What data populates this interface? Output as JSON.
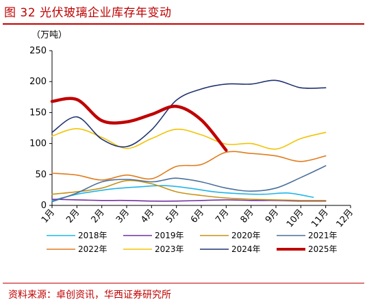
{
  "figure_title": "图 32 光伏玻璃企业库存年变动",
  "source_note": "资料来源：卓创资讯，华西证券研究所",
  "chart_data": {
    "type": "line",
    "title": "",
    "unit_label": "（万吨）",
    "ylim": [
      0,
      250
    ],
    "y_ticks": [
      "0",
      "50",
      "100",
      "150",
      "200",
      "250"
    ],
    "categories": [
      "1月",
      "2月",
      "2月",
      "3月",
      "4月",
      "5月",
      "6月",
      "7月",
      "8月",
      "9月",
      "10月",
      "11月",
      "12月"
    ],
    "grid": false,
    "legend_position": "bottom",
    "series": [
      {
        "name": "2018年",
        "color": "#1fb5e8",
        "width": 1.6,
        "points": [
          [
            1,
            8
          ],
          [
            2,
            18
          ],
          [
            2.6,
            22
          ],
          [
            3.5,
            27
          ],
          [
            4.5,
            30
          ],
          [
            5.5,
            32
          ],
          [
            6.5,
            28
          ],
          [
            7.5,
            22
          ],
          [
            8.5,
            19
          ],
          [
            9.5,
            18
          ],
          [
            10.5,
            20
          ],
          [
            11.5,
            13
          ]
        ]
      },
      {
        "name": "2019年",
        "color": "#7030a0",
        "width": 1.6,
        "points": [
          [
            1,
            10
          ],
          [
            2,
            9
          ],
          [
            3,
            8
          ],
          [
            4,
            8
          ],
          [
            5,
            7
          ],
          [
            6,
            7
          ],
          [
            7,
            8
          ],
          [
            8,
            9
          ],
          [
            9,
            8
          ],
          [
            10,
            8
          ],
          [
            11,
            7
          ],
          [
            12,
            7
          ]
        ]
      },
      {
        "name": "2020年",
        "color": "#c69214",
        "width": 1.6,
        "points": [
          [
            1,
            18
          ],
          [
            2,
            22
          ],
          [
            3,
            28
          ],
          [
            4,
            40
          ],
          [
            5,
            35
          ],
          [
            6,
            22
          ],
          [
            7,
            16
          ],
          [
            8,
            12
          ],
          [
            9,
            10
          ],
          [
            10,
            9
          ],
          [
            11,
            8
          ],
          [
            12,
            8
          ]
        ]
      },
      {
        "name": "2021年",
        "color": "#4a6f9c",
        "width": 1.6,
        "points": [
          [
            1,
            6
          ],
          [
            2,
            20
          ],
          [
            3,
            38
          ],
          [
            4,
            42
          ],
          [
            5,
            38
          ],
          [
            5.5,
            41
          ],
          [
            6,
            44
          ],
          [
            7,
            38
          ],
          [
            8,
            28
          ],
          [
            9,
            23
          ],
          [
            10,
            28
          ],
          [
            11,
            45
          ],
          [
            12,
            64
          ]
        ]
      },
      {
        "name": "2022年",
        "color": "#e07b1c",
        "width": 1.6,
        "points": [
          [
            1,
            52
          ],
          [
            2,
            49
          ],
          [
            3,
            41
          ],
          [
            4,
            49
          ],
          [
            5,
            43
          ],
          [
            6,
            63
          ],
          [
            7,
            66
          ],
          [
            8,
            86
          ],
          [
            9,
            84
          ],
          [
            10,
            80
          ],
          [
            11,
            71
          ],
          [
            12,
            80
          ]
        ]
      },
      {
        "name": "2023年",
        "color": "#f2c300",
        "width": 1.6,
        "points": [
          [
            1,
            112
          ],
          [
            2,
            124
          ],
          [
            3,
            110
          ],
          [
            4,
            92
          ],
          [
            5,
            108
          ],
          [
            6,
            123
          ],
          [
            7,
            114
          ],
          [
            8,
            99
          ],
          [
            9,
            100
          ],
          [
            10,
            91
          ],
          [
            11,
            108
          ],
          [
            12,
            118
          ]
        ]
      },
      {
        "name": "2024年",
        "color": "#1f3270",
        "width": 1.6,
        "points": [
          [
            1,
            118
          ],
          [
            2,
            143
          ],
          [
            3,
            107
          ],
          [
            4,
            95
          ],
          [
            5,
            122
          ],
          [
            6,
            170
          ],
          [
            7,
            188
          ],
          [
            8,
            196
          ],
          [
            9,
            196
          ],
          [
            10,
            202
          ],
          [
            11,
            190
          ],
          [
            12,
            190
          ]
        ]
      },
      {
        "name": "2025年",
        "color": "#c00000",
        "width": 4.5,
        "points": [
          [
            1,
            168
          ],
          [
            2,
            171
          ],
          [
            3,
            137
          ],
          [
            4,
            135
          ],
          [
            5,
            147
          ],
          [
            6,
            160
          ],
          [
            7,
            138
          ],
          [
            8,
            89
          ]
        ]
      }
    ]
  }
}
